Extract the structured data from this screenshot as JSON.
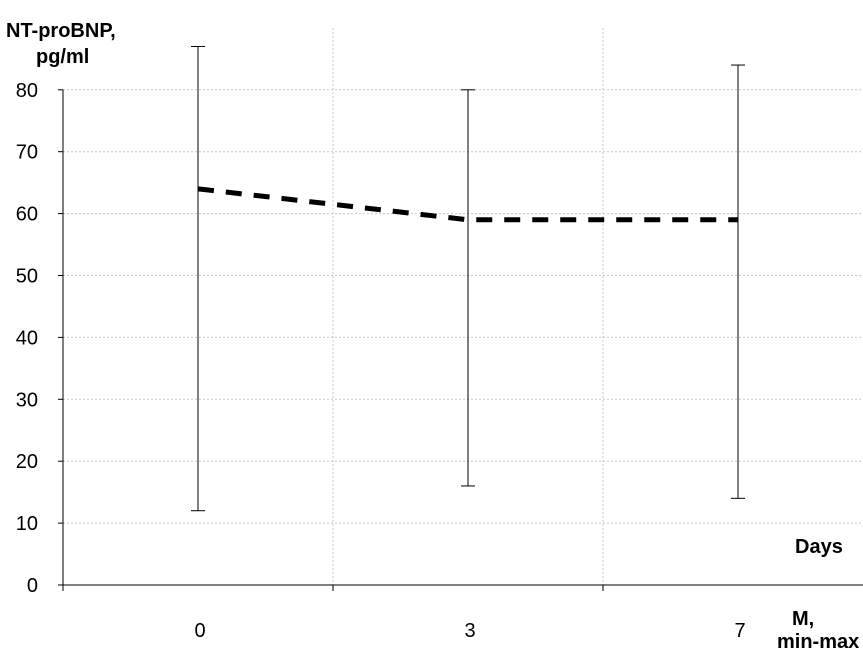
{
  "chart_data": {
    "type": "line",
    "ylabel_line1": "NT-proBNP,",
    "ylabel_line2": "pg/ml",
    "xlabel": "Days",
    "stat_label_line1": "M,",
    "stat_label_line2": "min-max",
    "categories": [
      "0",
      "3",
      "7"
    ],
    "y_ticks": [
      0,
      10,
      20,
      30,
      40,
      50,
      60,
      70,
      80
    ],
    "ylim": [
      0,
      80
    ],
    "grid": true,
    "series": [
      {
        "values": [
          64,
          59,
          59
        ],
        "min": [
          12,
          16,
          14
        ],
        "max": [
          87,
          80,
          84
        ]
      }
    ]
  }
}
